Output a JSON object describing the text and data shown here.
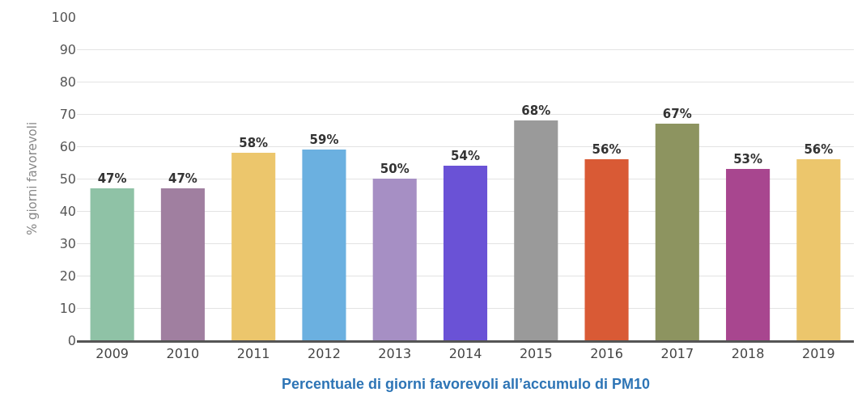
{
  "chart_data": {
    "type": "bar",
    "title": "Percentuale di giorni favorevoli all’accumulo di PM10",
    "ylabel": "% giorni favorevoli",
    "categories": [
      "2009",
      "2010",
      "2011",
      "2012",
      "2013",
      "2014",
      "2015",
      "2016",
      "2017",
      "2018",
      "2019"
    ],
    "values": [
      47,
      47,
      58,
      59,
      50,
      54,
      68,
      56,
      67,
      53,
      56
    ],
    "value_labels": [
      "47%",
      "47%",
      "58%",
      "59%",
      "50%",
      "54%",
      "68%",
      "56%",
      "67%",
      "53%",
      "56%"
    ],
    "colors": [
      "#8fc2a6",
      "#a07fa0",
      "#ecc66c",
      "#6bb0e0",
      "#a68fc4",
      "#6a52d6",
      "#9a9a9a",
      "#d95a35",
      "#8d9460",
      "#a8468f",
      "#ecc66c"
    ],
    "ylim": [
      0,
      100
    ],
    "yticks": [
      0,
      10,
      20,
      30,
      40,
      50,
      60,
      70,
      80,
      90,
      100
    ],
    "grid": "y",
    "legend": false
  }
}
